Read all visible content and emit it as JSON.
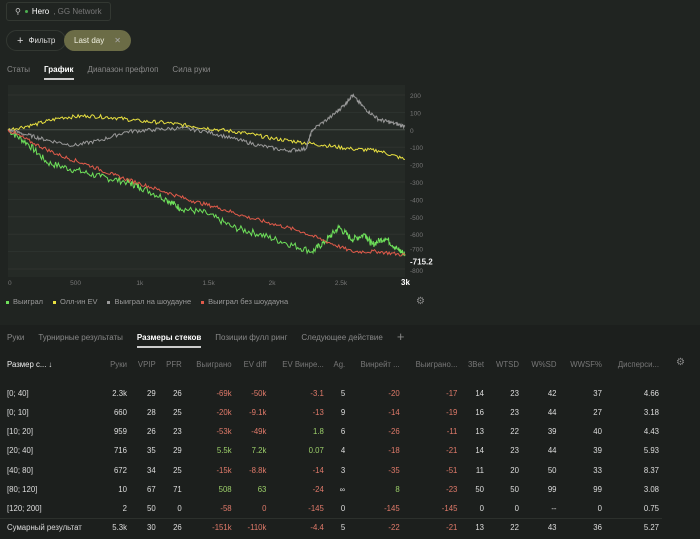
{
  "header": {
    "player": "Hero",
    "network": ", GG Network"
  },
  "filters": {
    "add_label": "Фильтр",
    "active_filter": "Last day"
  },
  "top_tabs": [
    "Статы",
    "График",
    "Диапазон префлоп",
    "Сила руки"
  ],
  "chart_data": {
    "type": "line",
    "x_ticks": [
      "0",
      "500",
      "1k",
      "1.5k",
      "2k",
      "2.5k",
      "3k"
    ],
    "y_ticks": [
      "200",
      "100",
      "0",
      "-100",
      "-200",
      "-300",
      "-400",
      "-500",
      "-600",
      "-700",
      "-800"
    ],
    "xlim": [
      0,
      3000
    ],
    "ylim": [
      -820,
      220
    ],
    "end_label": "-715.2",
    "series": [
      {
        "name": "Выиграл",
        "color": "#6ee05a",
        "x": [
          0,
          150,
          300,
          500,
          700,
          900,
          1000,
          1200,
          1300,
          1500,
          1700,
          1900,
          2100,
          2300,
          2400,
          2500,
          2600,
          2700,
          2750,
          2850,
          2950,
          3000
        ],
        "y": [
          0,
          -80,
          -190,
          -230,
          -270,
          -300,
          -330,
          -400,
          -450,
          -480,
          -560,
          -600,
          -650,
          -700,
          -640,
          -560,
          -630,
          -600,
          -660,
          -620,
          -690,
          -715
        ]
      },
      {
        "name": "Олл-ин EV",
        "color": "#e8e040",
        "x": [
          0,
          200,
          400,
          600,
          800,
          1000,
          1200,
          1400,
          1600,
          1800,
          2000,
          2200,
          2400,
          2600,
          2800,
          3000
        ],
        "y": [
          0,
          30,
          70,
          80,
          70,
          50,
          40,
          20,
          0,
          -20,
          -50,
          -70,
          -90,
          -110,
          -120,
          -170
        ]
      },
      {
        "name": "Выиграл на шоудауне",
        "color": "#999999",
        "x": [
          0,
          150,
          300,
          500,
          700,
          900,
          1100,
          1300,
          1500,
          1700,
          1900,
          2100,
          2250,
          2300,
          2450,
          2550,
          2600,
          2700,
          2800,
          2900,
          3000
        ],
        "y": [
          0,
          -30,
          -60,
          -90,
          -60,
          -10,
          0,
          10,
          -10,
          -50,
          -90,
          -120,
          -110,
          0,
          80,
          150,
          200,
          120,
          60,
          40,
          20
        ]
      },
      {
        "name": "Выиграл без шоудауна",
        "color": "#e05a4a",
        "x": [
          0,
          200,
          400,
          600,
          800,
          1000,
          1200,
          1400,
          1600,
          1800,
          2000,
          2200,
          2400,
          2600,
          2800,
          3000
        ],
        "y": [
          0,
          -80,
          -150,
          -200,
          -260,
          -310,
          -360,
          -410,
          -450,
          -500,
          -540,
          -580,
          -640,
          -700,
          -700,
          -720
        ]
      }
    ]
  },
  "legend": [
    "Выиграл",
    "Олл-ин EV",
    "Выиграл на шоудауне",
    "Выиграл без шоудауна"
  ],
  "bottom_tabs": [
    "Руки",
    "Турнирные результаты",
    "Размеры стеков",
    "Позиции фулл ринг",
    "Следующее действие"
  ],
  "table": {
    "headers": [
      "Размер с... ↓",
      "Руки",
      "VPIP",
      "PFR",
      "Выиграно",
      "EV diff",
      "EV Винре...",
      "Ag.",
      "Винрейт ...",
      "Выиграно...",
      "3Bet",
      "WTSD",
      "W%SD",
      "WWSF%",
      "Дисперси..."
    ],
    "rows": [
      [
        "[0; 40]",
        "2.3k",
        "29",
        "26",
        "-69k",
        "-50k",
        "-3.1",
        "5",
        "-20",
        "-17",
        "14",
        "23",
        "42",
        "37",
        "4.66"
      ],
      [
        "[0; 10]",
        "660",
        "28",
        "25",
        "-20k",
        "-9.1k",
        "-13",
        "9",
        "-14",
        "-19",
        "16",
        "23",
        "44",
        "27",
        "3.18"
      ],
      [
        "[10; 20]",
        "959",
        "26",
        "23",
        "-53k",
        "-49k",
        "1.8",
        "6",
        "-26",
        "-11",
        "13",
        "22",
        "39",
        "40",
        "4.43"
      ],
      [
        "[20; 40]",
        "716",
        "35",
        "29",
        "5.5k",
        "7.2k",
        "0.07",
        "4",
        "-18",
        "-21",
        "14",
        "23",
        "44",
        "39",
        "5.93"
      ],
      [
        "[40; 80]",
        "672",
        "34",
        "25",
        "-15k",
        "-8.8k",
        "-14",
        "3",
        "-35",
        "-51",
        "11",
        "20",
        "50",
        "33",
        "8.37"
      ],
      [
        "[80; 120]",
        "10",
        "67",
        "71",
        "508",
        "63",
        "-24",
        "∞",
        "8",
        "-23",
        "50",
        "50",
        "99",
        "99",
        "3.08"
      ],
      [
        "[120; 200]",
        "2",
        "50",
        "0",
        "-58",
        "0",
        "-145",
        "0",
        "-145",
        "-145",
        "0",
        "0",
        "--",
        "0",
        "0.75"
      ]
    ],
    "summary": [
      "Сумарный результат",
      "5.3k",
      "30",
      "26",
      "-151k",
      "-110k",
      "-4.4",
      "5",
      "-22",
      "-21",
      "13",
      "22",
      "43",
      "36",
      "5.27"
    ]
  }
}
